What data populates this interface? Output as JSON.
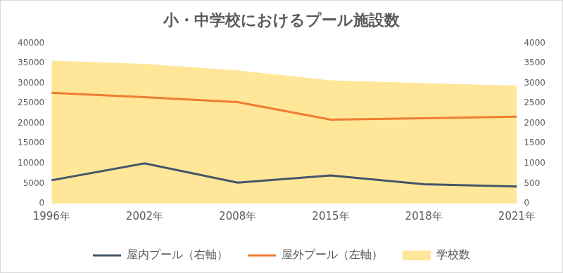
{
  "chart_data": {
    "type": "line",
    "title": "小・中学校におけるプール施設数",
    "categories": [
      "1996年",
      "2002年",
      "2008年",
      "2015年",
      "2018年",
      "2021年"
    ],
    "series": [
      {
        "name": "学校数",
        "type": "area",
        "color": "#ffe699",
        "axis": "y",
        "values": [
          35600,
          34800,
          33200,
          30700,
          30000,
          29400
        ]
      },
      {
        "name": "屋外プール（左軸）",
        "type": "line",
        "color": "#ed7d31",
        "axis": "y",
        "values": [
          27600,
          26500,
          25300,
          20900,
          21250,
          21650
        ]
      },
      {
        "name": "屋内プール（右軸）",
        "type": "line",
        "color": "#44546a",
        "axis": "y2",
        "values": [
          580,
          1000,
          520,
          700,
          480,
          425
        ]
      }
    ],
    "ylim": [
      0,
      40000
    ],
    "yticks": [
      0,
      5000,
      10000,
      15000,
      20000,
      25000,
      30000,
      35000,
      40000
    ],
    "y2lim": [
      0,
      4000
    ],
    "y2ticks": [
      0,
      500,
      1000,
      1500,
      2000,
      2500,
      3000,
      3500,
      4000
    ],
    "grid": false,
    "legend": "bottom"
  }
}
